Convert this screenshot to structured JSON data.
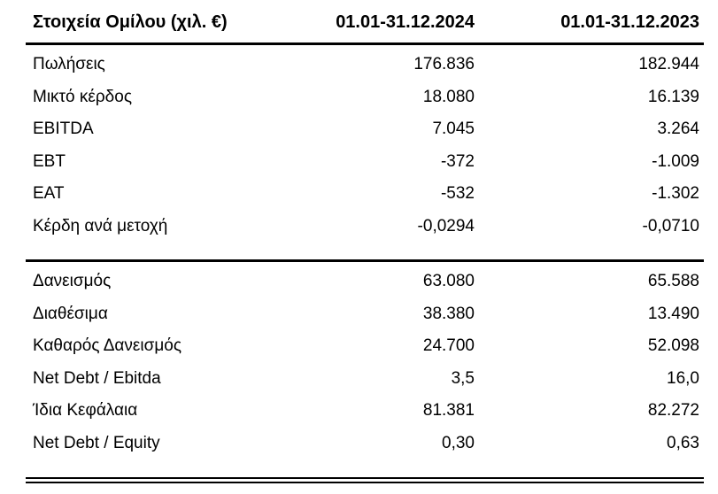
{
  "table": {
    "header": {
      "label": "Στοιχεία Ομίλου (χιλ. €)",
      "col_2024": "01.01-31.12.2024",
      "col_2023": "01.01-31.12.2023"
    },
    "section1": [
      {
        "label": "Πωλήσεις",
        "v2024": "176.836",
        "v2023": "182.944"
      },
      {
        "label": "Μικτό κέρδος",
        "v2024": "18.080",
        "v2023": "16.139"
      },
      {
        "label": "EBITDA",
        "v2024": "7.045",
        "v2023": "3.264"
      },
      {
        "label": "EBT",
        "v2024": "-372",
        "v2023": "-1.009"
      },
      {
        "label": "EAT",
        "v2024": "-532",
        "v2023": "-1.302"
      },
      {
        "label": "Κέρδη ανά μετοχή",
        "v2024": "-0,0294",
        "v2023": "-0,0710"
      }
    ],
    "section2": [
      {
        "label": "Δανεισμός",
        "v2024": "63.080",
        "v2023": "65.588"
      },
      {
        "label": "Διαθέσιμα",
        "v2024": "38.380",
        "v2023": "13.490"
      },
      {
        "label": "Καθαρός Δανεισμός",
        "v2024": "24.700",
        "v2023": "52.098"
      },
      {
        "label": "Net Debt / Ebitda",
        "v2024": "3,5",
        "v2023": "16,0"
      },
      {
        "label": "Ίδια Κεφάλαια",
        "v2024": "81.381",
        "v2023": "82.272"
      },
      {
        "label": "Net Debt / Equity",
        "v2024": "0,30",
        "v2023": "0,63"
      }
    ],
    "colors": {
      "text": "#000000",
      "rule": "#000000",
      "background": "#ffffff"
    }
  }
}
